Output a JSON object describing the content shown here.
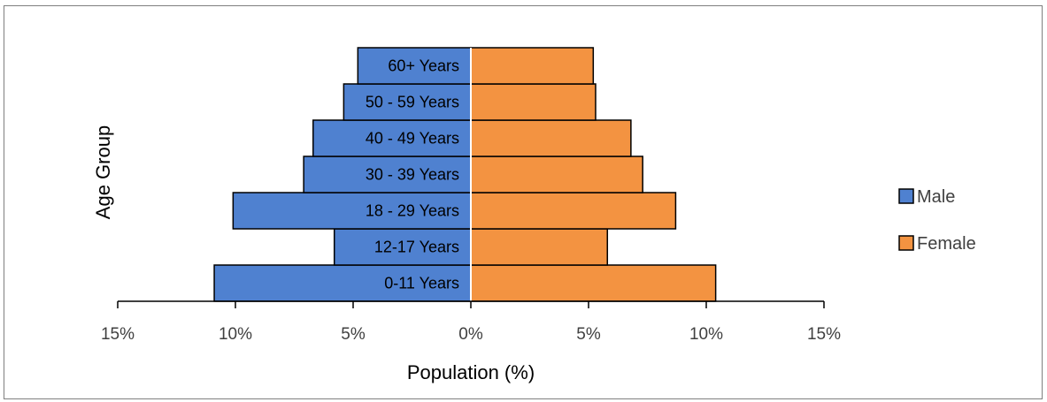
{
  "chart_data": {
    "type": "bar",
    "orientation": "horizontal-population-pyramid",
    "categories": [
      "0-11 Years",
      "12-17 Years",
      "18 - 29 Years",
      "30 - 39 Years",
      "40 - 49 Years",
      "50 - 59 Years",
      "60+ Years"
    ],
    "series": [
      {
        "name": "Male",
        "values": [
          10.9,
          5.8,
          10.1,
          7.1,
          6.7,
          5.4,
          4.8
        ],
        "color": "#4f81d0"
      },
      {
        "name": "Female",
        "values": [
          10.4,
          5.8,
          8.7,
          7.3,
          6.8,
          5.3,
          5.2
        ],
        "color": "#f39341"
      }
    ],
    "xlabel": "Population (%)",
    "ylabel": "Age Group",
    "xlim": [
      -15,
      15
    ],
    "xticks": [
      -15,
      -10,
      -5,
      0,
      5,
      10,
      15
    ],
    "xtick_labels": [
      "15%",
      "10%",
      "5%",
      "0%",
      "5%",
      "10%",
      "15%"
    ],
    "legend_position": "right",
    "grid": false
  }
}
